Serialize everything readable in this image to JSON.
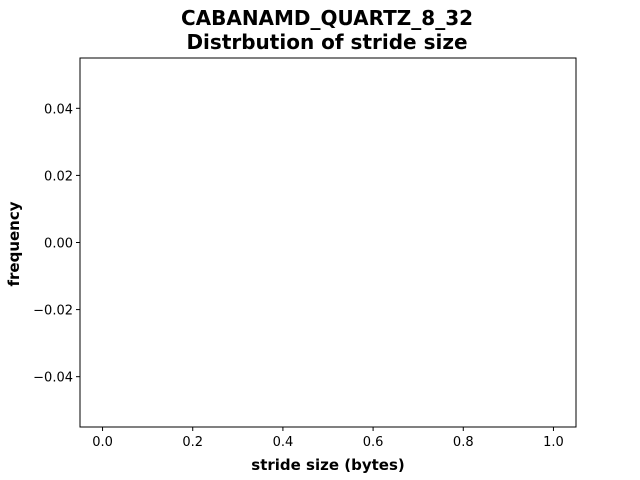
{
  "chart_data": {
    "type": "bar",
    "title": "CABANAMD_QUARTZ_8_32",
    "subtitle": "Distrbution of stride size",
    "xlabel": "stride size (bytes)",
    "ylabel": "frequency",
    "x": [],
    "values": [],
    "xlim": [
      -0.05,
      1.05
    ],
    "ylim": [
      -0.055,
      0.055
    ],
    "xticks": [
      0.0,
      0.2,
      0.4,
      0.6,
      0.8,
      1.0
    ],
    "xtick_labels": [
      "0.0",
      "0.2",
      "0.4",
      "0.6",
      "0.8",
      "1.0"
    ],
    "yticks": [
      0.04,
      0.02,
      0.0,
      -0.02,
      -0.04
    ],
    "ytick_labels": [
      "0.04",
      "0.02",
      "0.00",
      "−0.02",
      "−0.04"
    ],
    "grid": false,
    "legend": false
  }
}
